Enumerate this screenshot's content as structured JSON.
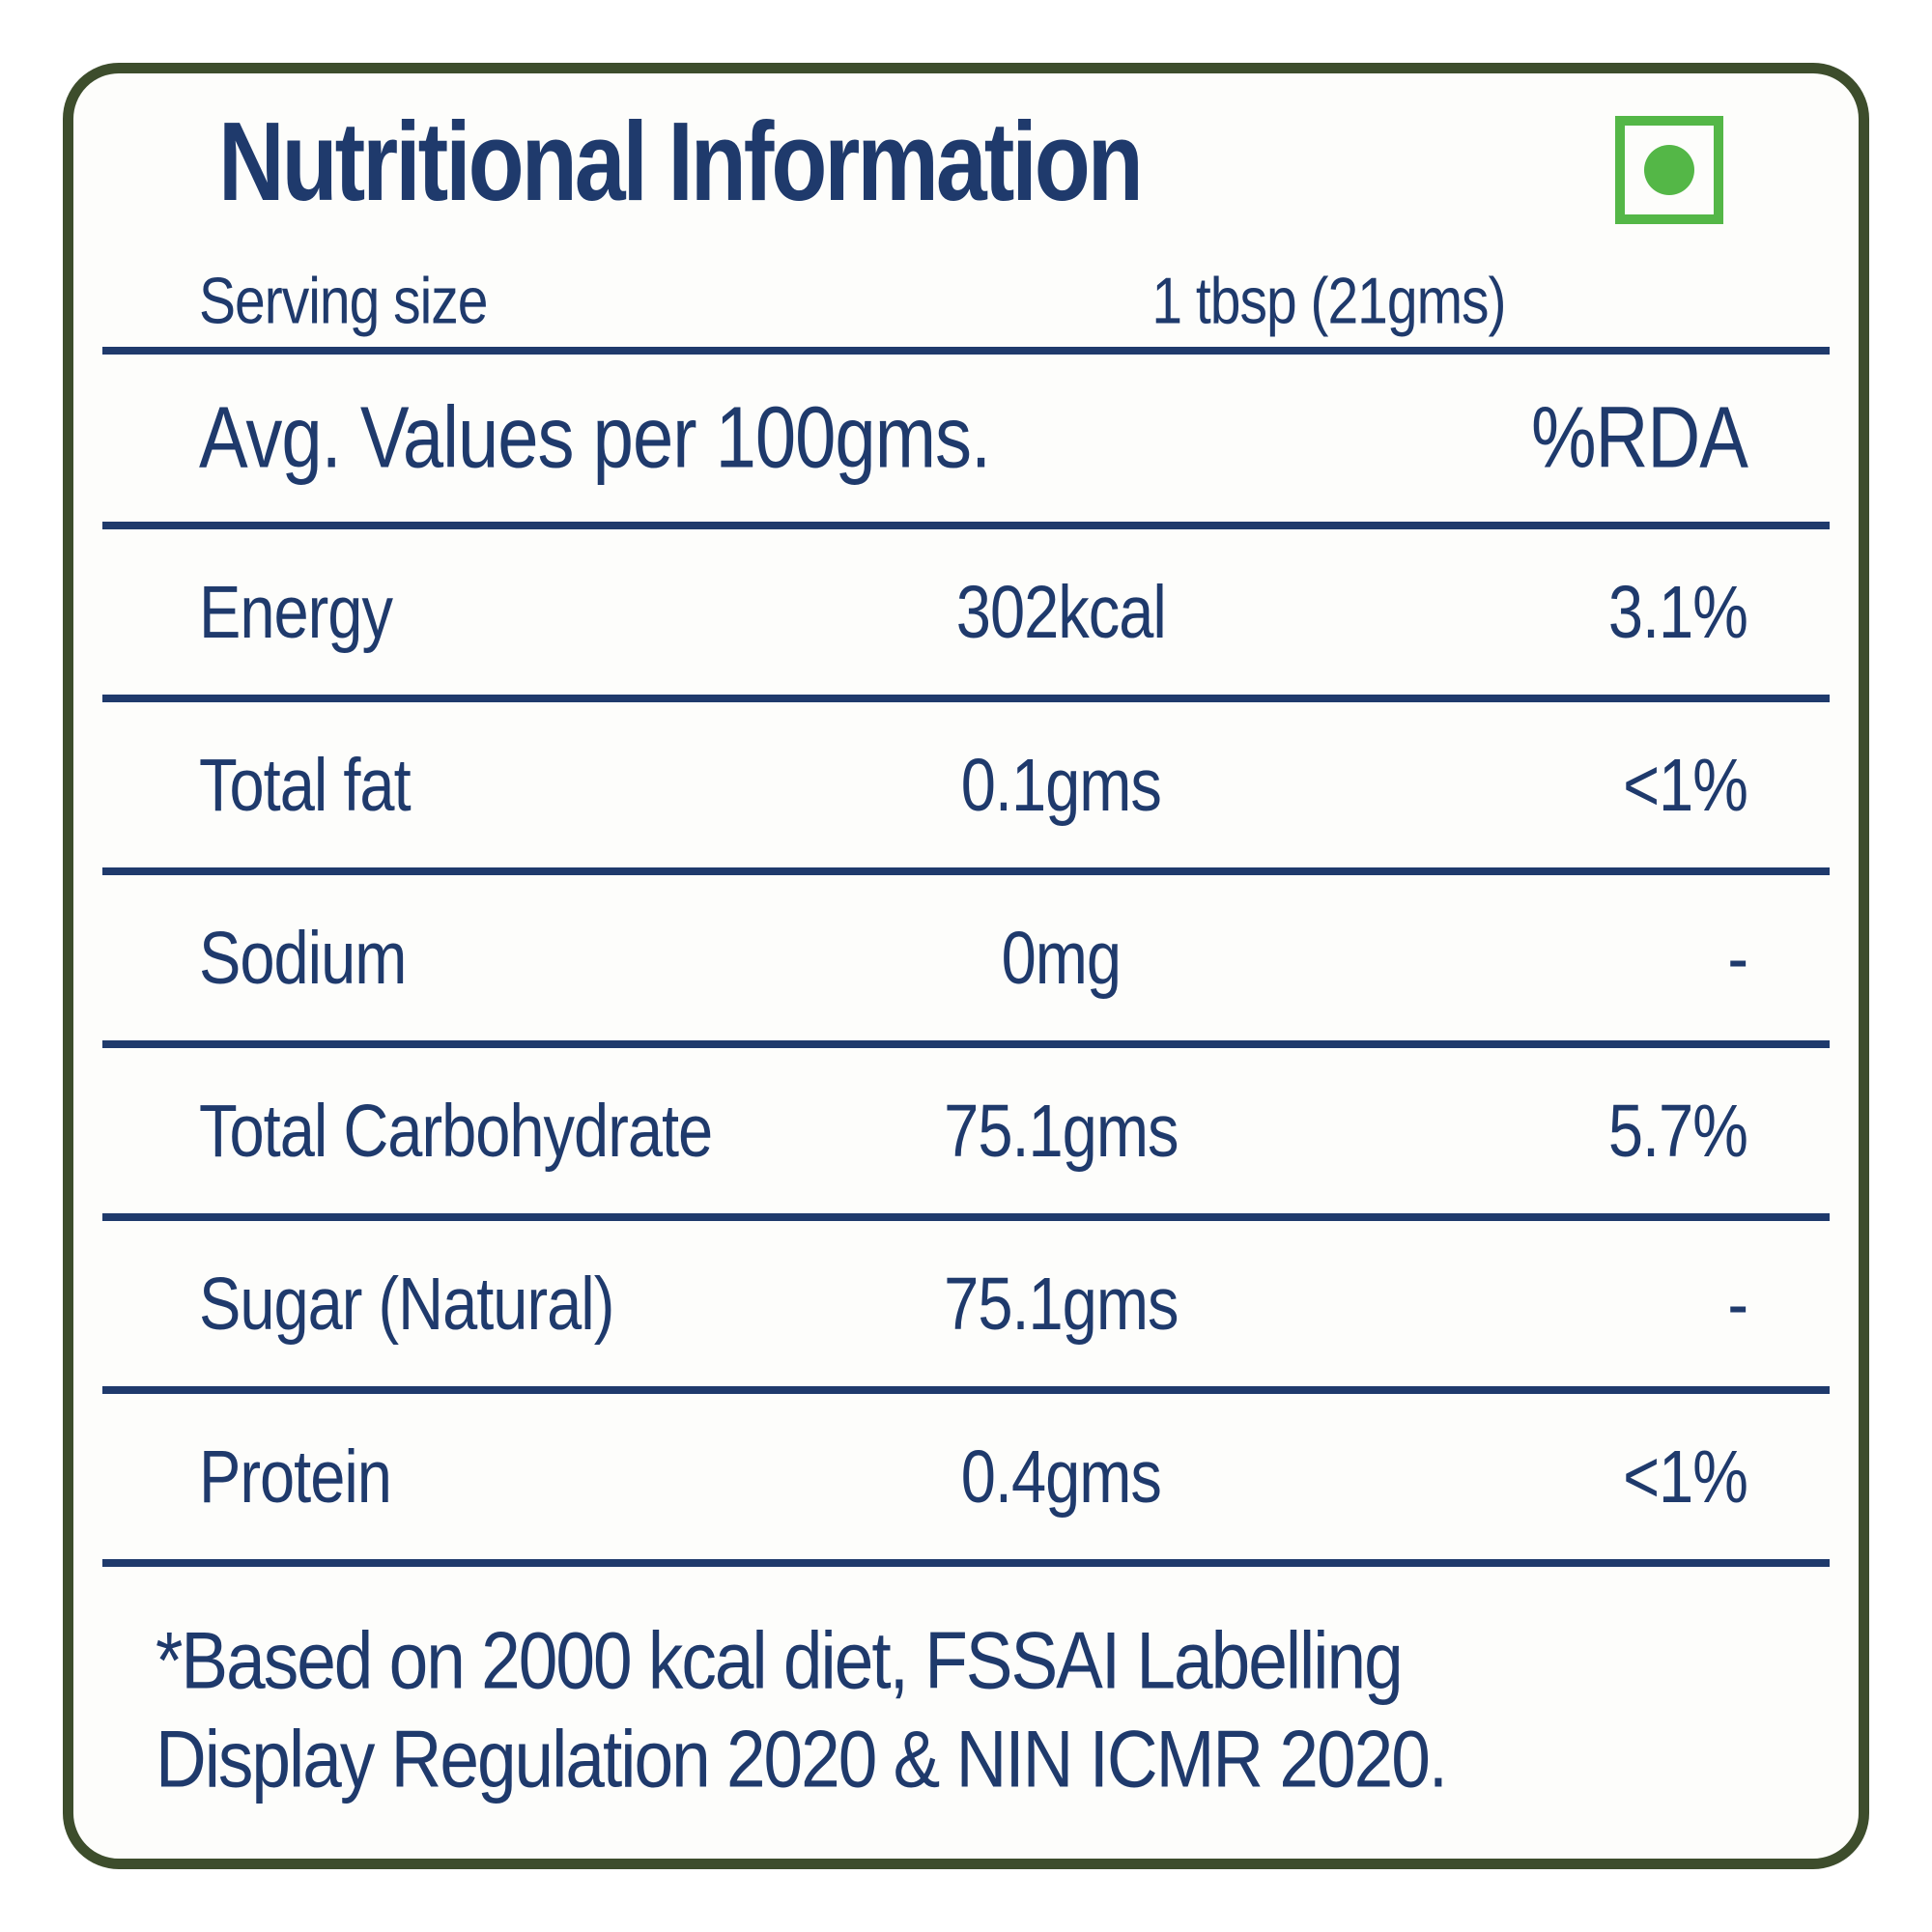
{
  "label": {
    "title": "Nutritional Information",
    "veg_mark": "vegetarian-symbol",
    "serving": {
      "label": "Serving size",
      "value": "1 tbsp (21gms)"
    },
    "columns_header": {
      "values_label": "Avg. Values per 100gms.",
      "rda_label": "%RDA"
    },
    "rows": [
      {
        "name": "Energy",
        "amount": "302kcal",
        "rda": "3.1%"
      },
      {
        "name": "Total fat",
        "amount": "0.1gms",
        "rda": "<1%"
      },
      {
        "name": "Sodium",
        "amount": "0mg",
        "rda": "-"
      },
      {
        "name": "Total Carbohydrate",
        "amount": "75.1gms",
        "rda": "5.7%"
      },
      {
        "name": "Sugar (Natural)",
        "amount": "75.1gms",
        "rda": "-"
      },
      {
        "name": "Protein",
        "amount": "0.4gms",
        "rda": "<1%"
      }
    ],
    "footnote_line1": "*Based on 2000 kcal diet, FSSAI Labelling",
    "footnote_line2": "Display Regulation 2020 & NIN ICMR 2020.",
    "colors": {
      "text_navy": "#1f3a6c",
      "frame_green": "#3d4d2c",
      "veg_green": "#54b747",
      "background": "#fdfdfb"
    }
  }
}
